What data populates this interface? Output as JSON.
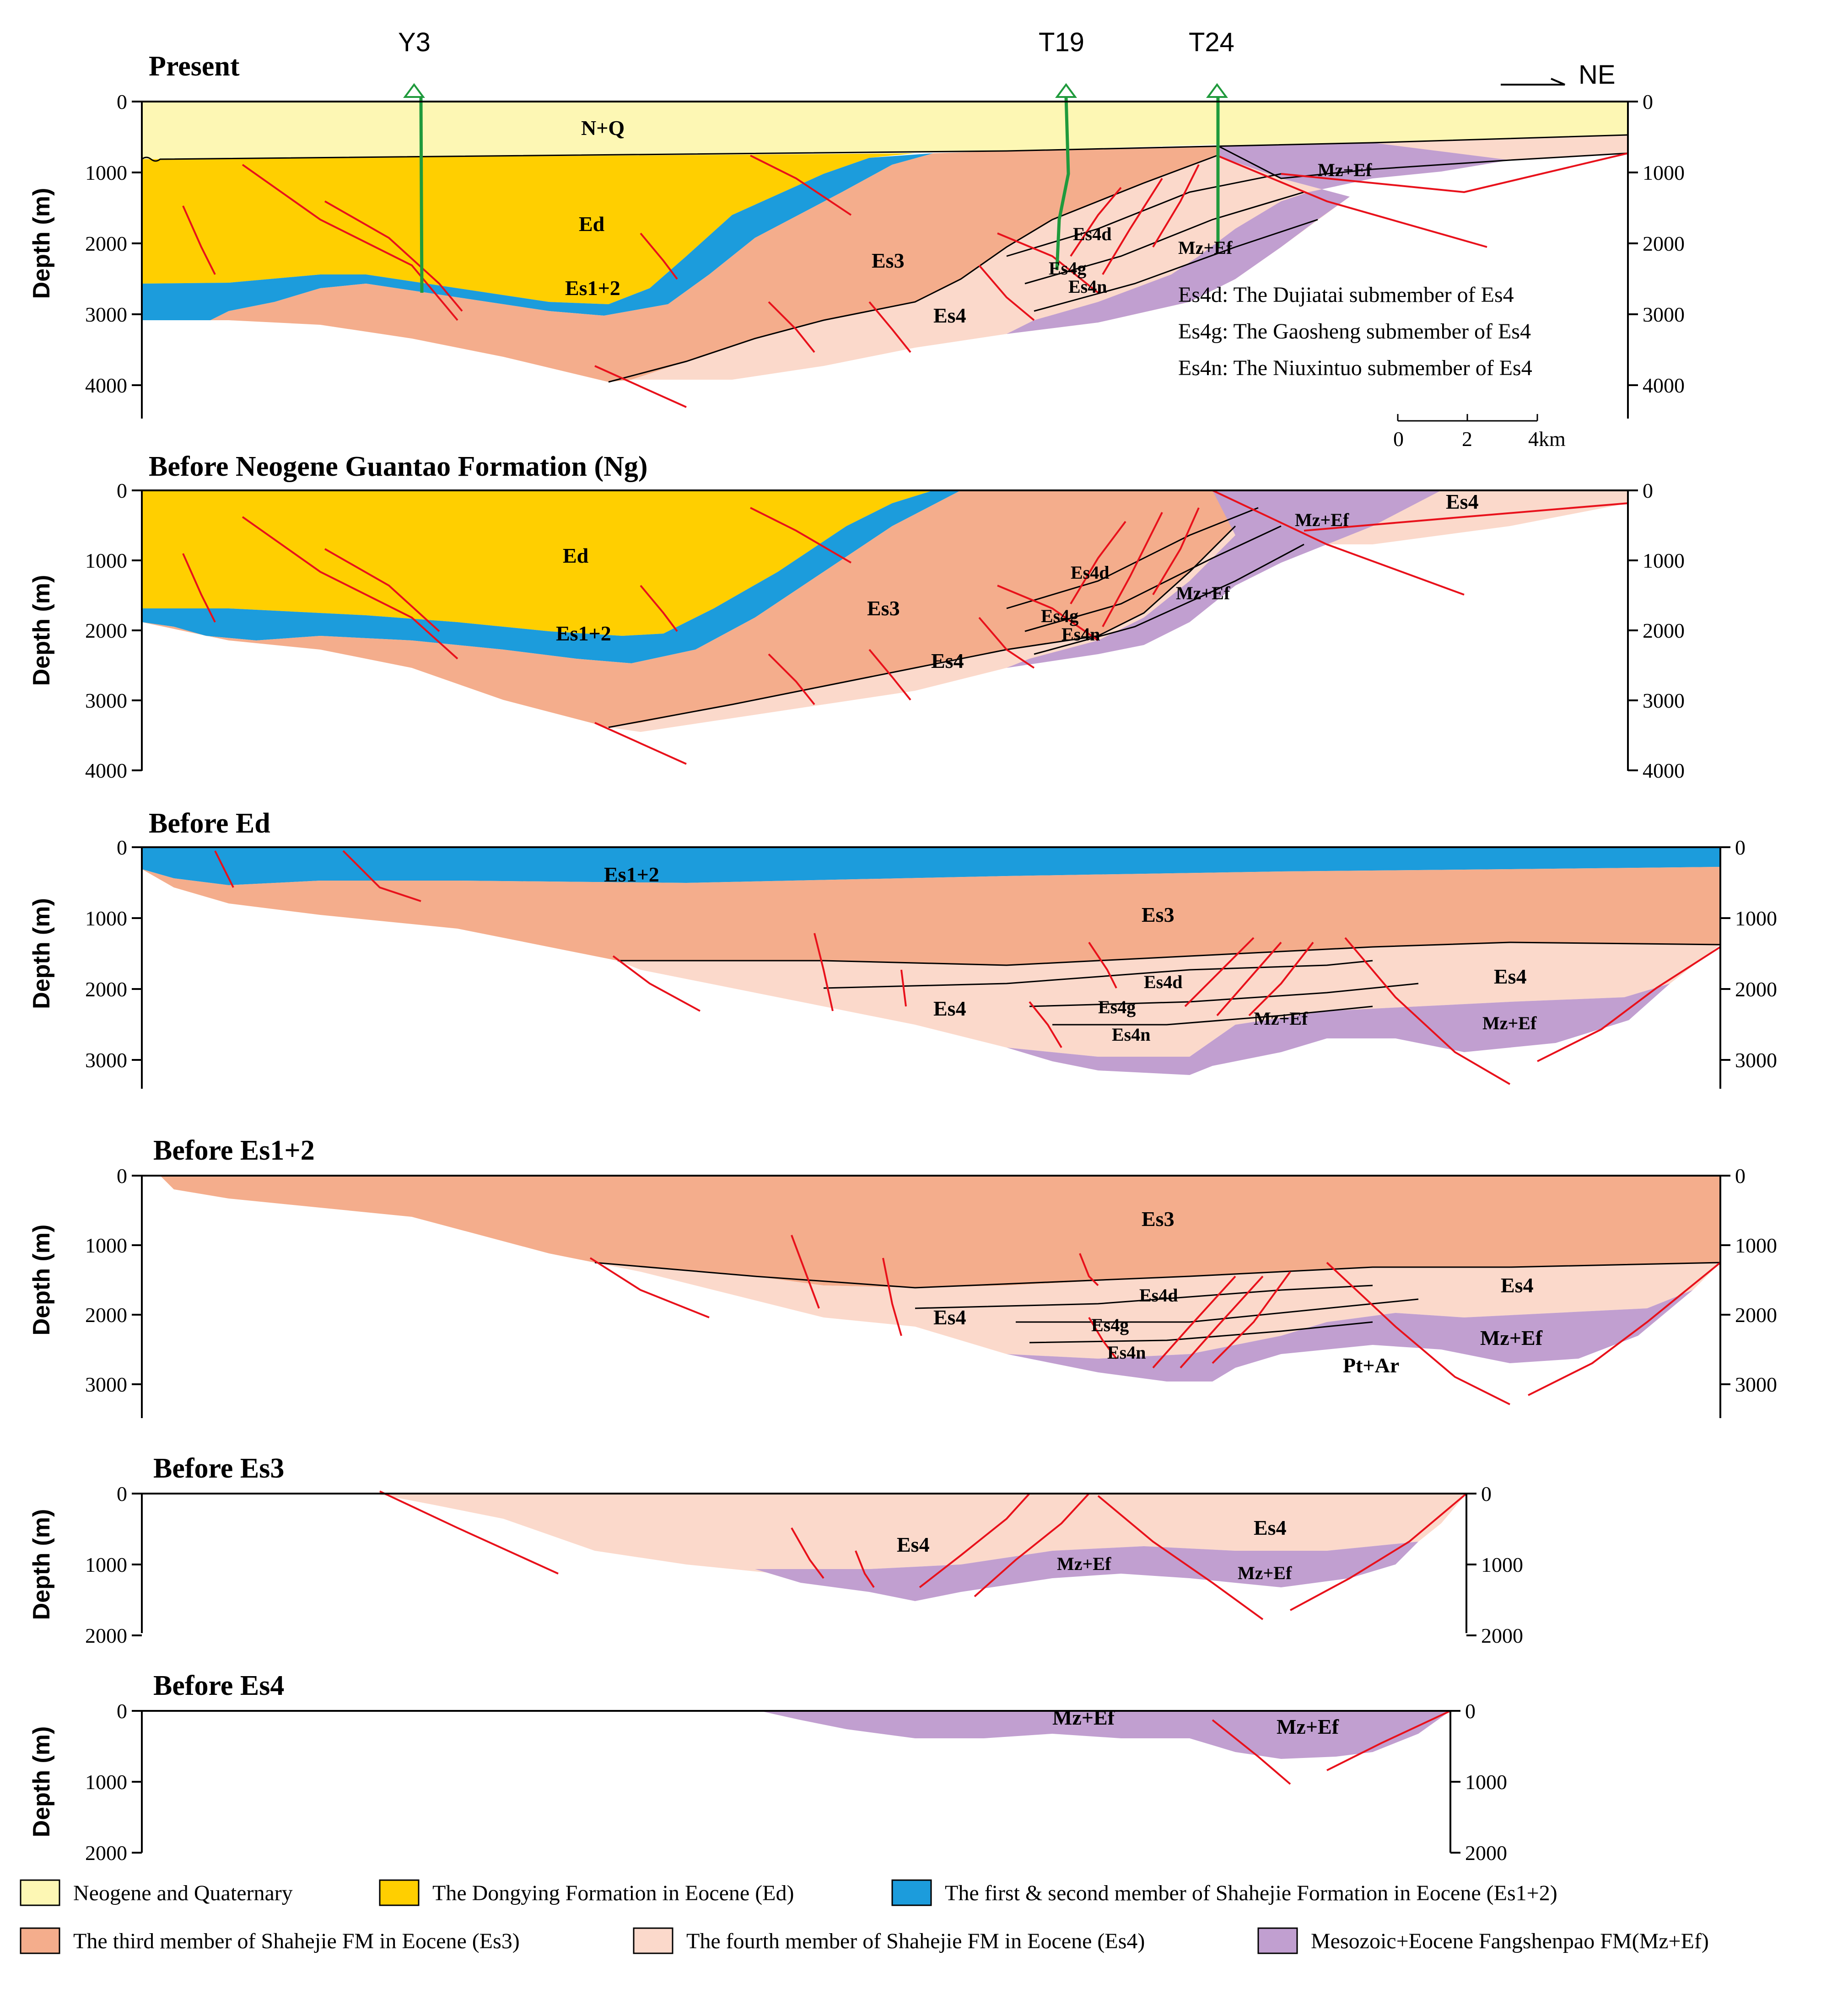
{
  "colors": {
    "nq": "#fdf7b4",
    "ed": "#ffcf00",
    "es12": "#1c9cdc",
    "es3": "#f4ad8c",
    "es4": "#fbd9cb",
    "mz": "#c19fd0",
    "fault": "#e8111b",
    "well": "#1f9a3c"
  },
  "panels": [
    {
      "title": "Present",
      "ylabel": "Depth (m)",
      "ticks": [
        "0",
        "1000",
        "2000",
        "3000",
        "4000"
      ],
      "right_ticks": [
        "0",
        "1000",
        "2000",
        "3000",
        "4000"
      ],
      "units": {
        "nq": "N+Q",
        "ed": "Ed",
        "es12": "Es1+2",
        "es3": "Es3",
        "es4": "Es4",
        "es4d": "Es4d",
        "es4g": "Es4g",
        "es4n": "Es4n",
        "mz1": "Mz+Ef",
        "mz2": "Mz+Ef"
      },
      "wells": [
        "Y3",
        "T19",
        "T24"
      ],
      "direction": "NE",
      "notes": [
        "Es4d: The Dujiatai submember of Es4",
        "Es4g: The Gaosheng submember of Es4",
        "Es4n: The Niuxintuo submember of  Es4"
      ],
      "scale": {
        "labels": [
          "0",
          "2",
          "4km"
        ]
      }
    },
    {
      "title": "Before Neogene Guantao Formation (Ng)",
      "ylabel": "Depth (m)",
      "ticks": [
        "0",
        "1000",
        "2000",
        "3000",
        "4000"
      ],
      "right_ticks": [
        "0",
        "1000",
        "2000",
        "3000",
        "4000"
      ],
      "units": {
        "ed": "Ed",
        "es12": "Es1+2",
        "es3": "Es3",
        "es4": "Es4",
        "es4b": "Es4",
        "es4d": "Es4d",
        "es4g": "Es4g",
        "es4n": "Es4n",
        "mz1": "Mz+Ef",
        "mz2": "Mz+Ef"
      }
    },
    {
      "title": "Before Ed",
      "ylabel": "Depth (m)",
      "ticks": [
        "0",
        "1000",
        "2000",
        "3000"
      ],
      "right_ticks": [
        "0",
        "1000",
        "2000",
        "3000"
      ],
      "units": {
        "es12": "Es1+2",
        "es3": "Es3",
        "es4": "Es4",
        "es4b": "Es4",
        "es4d": "Es4d",
        "es4g": "Es4g",
        "es4n": "Es4n",
        "mz1": "Mz+Ef",
        "mz2": "Mz+Ef"
      }
    },
    {
      "title": "Before Es1+2",
      "ylabel": "Depth (m)",
      "ticks": [
        "0",
        "1000",
        "2000",
        "3000"
      ],
      "right_ticks": [
        "0",
        "1000",
        "2000",
        "3000"
      ],
      "units": {
        "es3": "Es3",
        "es4": "Es4",
        "es4b": "Es4",
        "es4d": "Es4d",
        "es4g": "Es4g",
        "es4n": "Es4n",
        "mz2": "Mz+Ef",
        "ptar": "Pt+Ar"
      }
    },
    {
      "title": "Before Es3",
      "ylabel": "Depth (m)",
      "ticks": [
        "0",
        "1000",
        "2000"
      ],
      "right_ticks": [
        "0",
        "1000",
        "2000"
      ],
      "units": {
        "es4": "Es4",
        "es4b": "Es4",
        "mz1": "Mz+Ef",
        "mz2": "Mz+Ef"
      }
    },
    {
      "title": "Before Es4",
      "ylabel": "Depth (m)",
      "ticks": [
        "0",
        "1000",
        "2000"
      ],
      "right_ticks": [
        "0",
        "1000",
        "2000"
      ],
      "units": {
        "mz1": "Mz+Ef",
        "mz2": "Mz+Ef"
      }
    }
  ],
  "legend": [
    {
      "label": "Neogene and Quaternary",
      "color": "#fdf7b4"
    },
    {
      "label": "The Dongying Formation in Eocene (Ed)",
      "color": "#ffcf00"
    },
    {
      "label": "The  first & second member of Shahejie Formation in Eocene (Es1+2)",
      "color": "#1c9cdc"
    },
    {
      "label": "The  third member of Shahejie FM in Eocene (Es3)",
      "color": "#f4ad8c"
    },
    {
      "label": "The  fourth member of Shahejie FM in Eocene (Es4)",
      "color": "#fbd9cb"
    },
    {
      "label": "Mesozoic+Eocene Fangshenpao FM(Mz+Ef)",
      "color": "#c19fd0"
    }
  ]
}
